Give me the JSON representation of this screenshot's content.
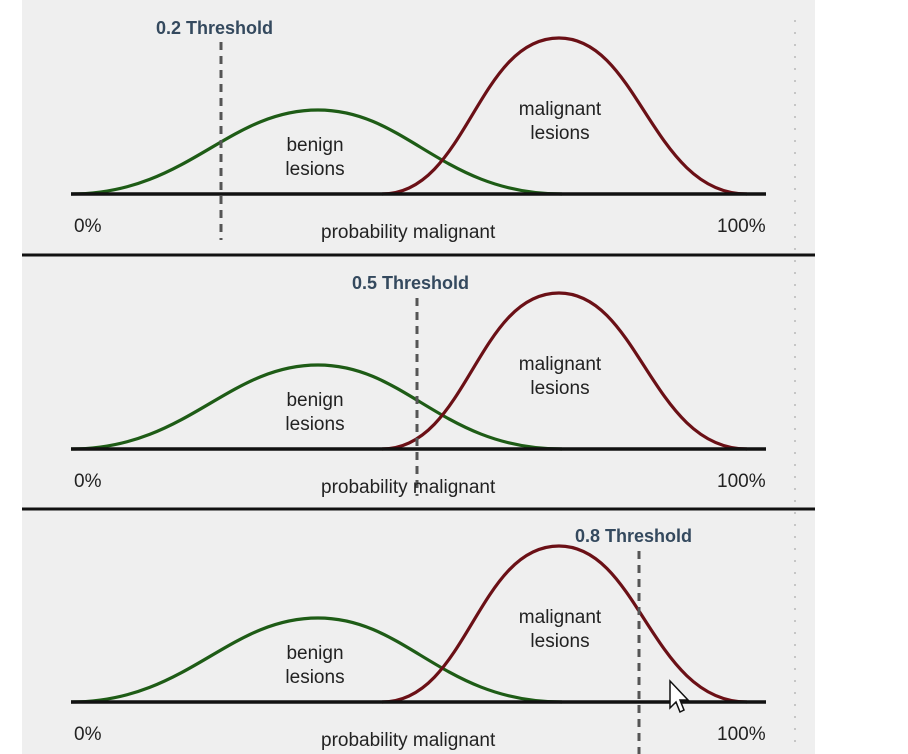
{
  "panels": [
    {
      "threshold_label": "0.2 Threshold",
      "threshold_value": 0.2,
      "benign_label": [
        "benign",
        "lesions"
      ],
      "malignant_label": [
        "malignant",
        "lesions"
      ],
      "axis_left": "0%",
      "axis_right": "100%",
      "axis_title": "probability malignant"
    },
    {
      "threshold_label": "0.5 Threshold",
      "threshold_value": 0.5,
      "benign_label": [
        "benign",
        "lesions"
      ],
      "malignant_label": [
        "malignant",
        "lesions"
      ],
      "axis_left": "0%",
      "axis_right": "100%",
      "axis_title": "probability malignant"
    },
    {
      "threshold_label": "0.8 Threshold",
      "threshold_value": 0.8,
      "benign_label": [
        "benign",
        "lesions"
      ],
      "malignant_label": [
        "malignant",
        "lesions"
      ],
      "axis_left": "0%",
      "axis_right": "100%",
      "axis_title": "probability malignant"
    }
  ],
  "colors": {
    "benign": "#1e5c16",
    "malignant": "#6b1016",
    "threshold_label": "#34495e"
  },
  "cursor_icon": "arrow-cursor-icon"
}
